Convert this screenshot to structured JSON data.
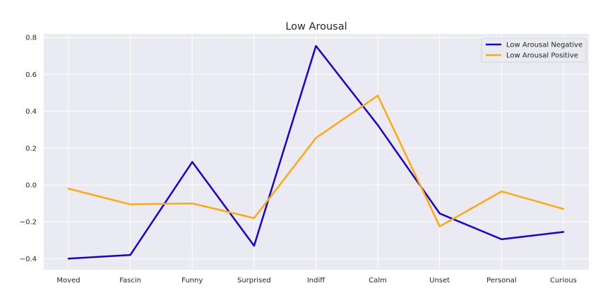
{
  "chart_data": {
    "type": "line",
    "title": "Low Arousal",
    "xlabel": "",
    "ylabel": "",
    "categories": [
      "Moved",
      "Fascin",
      "Funny",
      "Surprised",
      "Indiff",
      "Calm",
      "Unset",
      "Personal",
      "Curious"
    ],
    "ylim": [
      -0.46,
      0.82
    ],
    "yticks": [
      -0.4,
      -0.2,
      0.0,
      0.2,
      0.4,
      0.6,
      0.8
    ],
    "ytick_labels": [
      "−0.4",
      "−0.2",
      "0.0",
      "0.2",
      "0.4",
      "0.6",
      "0.8"
    ],
    "grid": true,
    "legend_position": "top-right",
    "series": [
      {
        "name": "Low Arousal Negative",
        "color": "#1a00d4",
        "values": [
          -0.4,
          -0.38,
          0.125,
          -0.33,
          0.755,
          0.325,
          -0.155,
          -0.295,
          -0.255
        ]
      },
      {
        "name": "Low Arousal Positive",
        "color": "#ffa812",
        "values": [
          -0.02,
          -0.105,
          -0.1,
          -0.18,
          0.255,
          0.485,
          -0.225,
          -0.035,
          -0.13
        ]
      }
    ]
  }
}
